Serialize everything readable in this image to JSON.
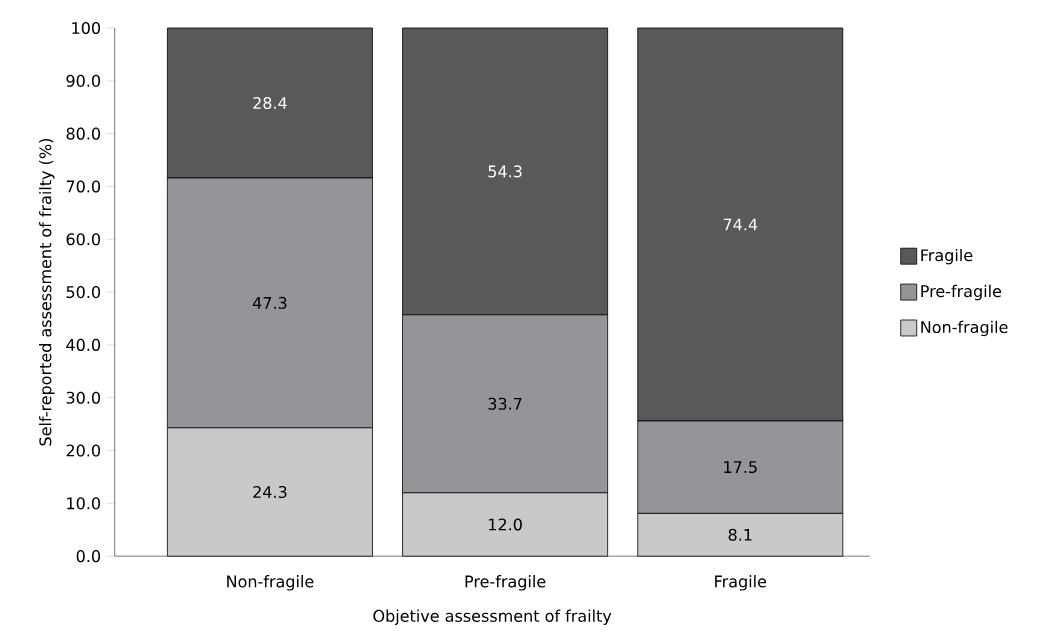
{
  "chart_data": {
    "type": "bar",
    "stacked": true,
    "xlabel": "Objetive assessment of frailty",
    "ylabel": "Self-reported assessment of frailty (%)",
    "categories": [
      "Non-fragile",
      "Pre-fragile",
      "Fragile"
    ],
    "series": [
      {
        "name": "Non-fragile",
        "color": "#c8c9cb",
        "values": [
          24.3,
          12.0,
          8.1
        ],
        "value_labels": [
          "24.3",
          "12.0",
          "8.1"
        ]
      },
      {
        "name": "Pre-fragile",
        "color": "#949599",
        "values": [
          47.3,
          33.7,
          17.5
        ],
        "value_labels": [
          "47.3",
          "33.7",
          "17.5"
        ]
      },
      {
        "name": "Fragile",
        "color": "#58595b",
        "values": [
          28.4,
          54.3,
          74.4
        ],
        "value_labels": [
          "28.4",
          "54.3",
          "74.4"
        ]
      }
    ],
    "ylim": [
      0,
      100
    ],
    "yticks": [
      {
        "value": 0,
        "label": "0.0"
      },
      {
        "value": 10,
        "label": "10.0"
      },
      {
        "value": 20,
        "label": "20.0"
      },
      {
        "value": 30,
        "label": "30.0"
      },
      {
        "value": 40,
        "label": "40.0"
      },
      {
        "value": 50,
        "label": "50.0"
      },
      {
        "value": 60,
        "label": "60.0"
      },
      {
        "value": 70,
        "label": "70.0"
      },
      {
        "value": 80,
        "label": "80.0"
      },
      {
        "value": 90,
        "label": "90.0"
      },
      100
    ],
    "legend": "right"
  }
}
